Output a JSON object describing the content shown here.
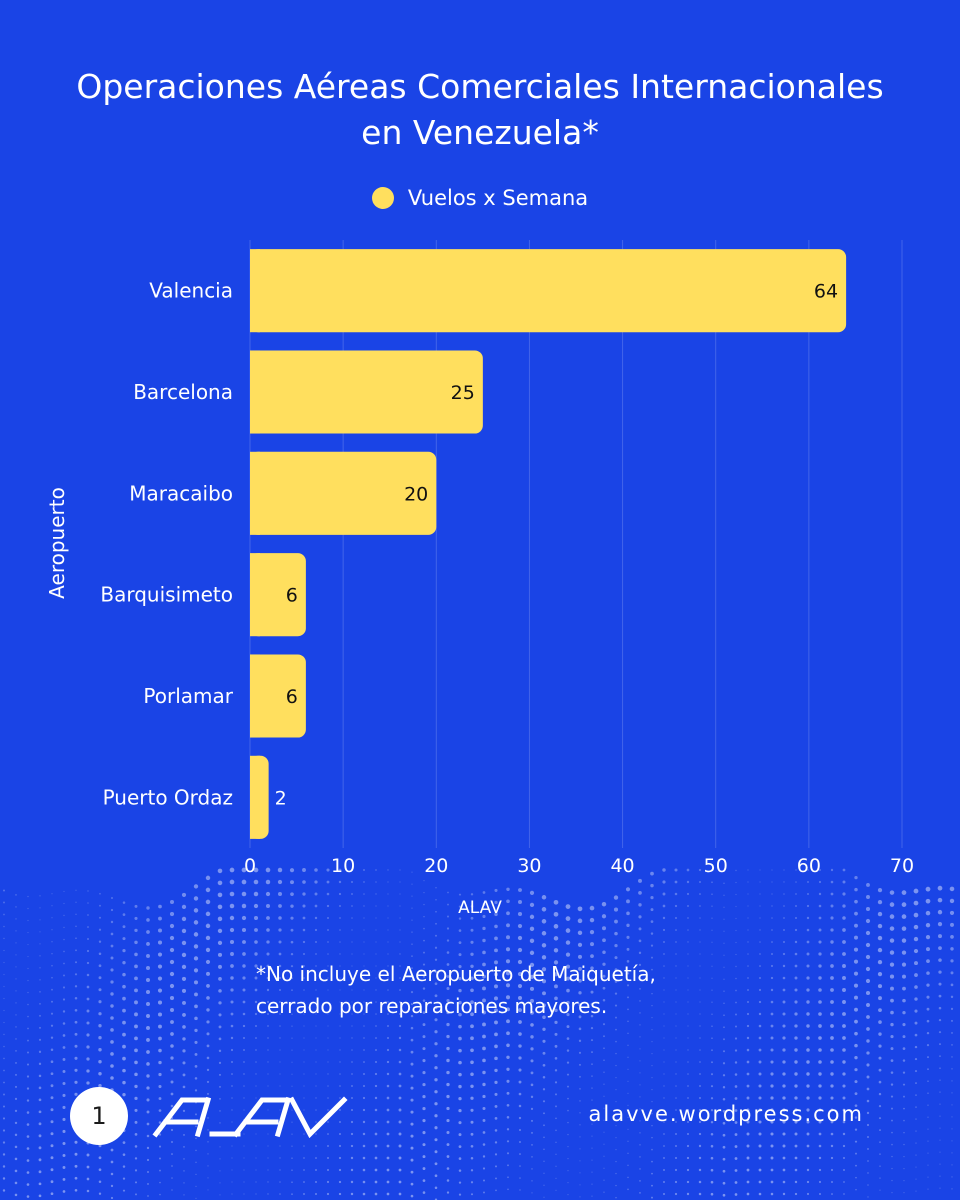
{
  "title": {
    "line1": "Operaciones Aéreas Comerciales Internacionales",
    "line2": "en Venezuela*"
  },
  "legend": {
    "label": "Vuelos x Semana"
  },
  "colors": {
    "background": "#1a44e6",
    "bar": "#ffdf5e",
    "text": "#ffffff",
    "value_text": "#111111"
  },
  "chart_data": {
    "type": "bar",
    "orientation": "horizontal",
    "categories": [
      "Valencia",
      "Barcelona",
      "Maracaibo",
      "Barquisimeto",
      "Porlamar",
      "Puerto Ordaz"
    ],
    "series": [
      {
        "name": "Vuelos x Semana",
        "values": [
          64,
          25,
          20,
          6,
          6,
          2
        ]
      }
    ],
    "xlabel": "ALAV",
    "ylabel": "Aeropuerto",
    "xlim": [
      0,
      70
    ],
    "xticks": [
      0,
      10,
      20,
      30,
      40,
      50,
      60,
      70
    ],
    "grid": true,
    "legend_position": "top-center",
    "data_labels": true
  },
  "footnote": {
    "line1": "*No incluye el Aeropuerto de Maiquetía,",
    "line2": "cerrado por reparaciones mayores."
  },
  "footer": {
    "page_number": "1",
    "logo_icon": "alav-logo-icon",
    "website": "alavve.wordpress.com"
  }
}
